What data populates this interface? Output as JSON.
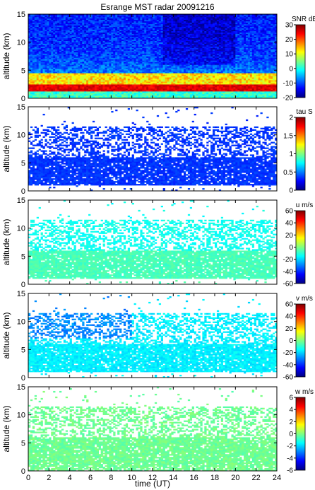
{
  "title": "Esrange MST radar 20091216",
  "xlabel": "time (UT)",
  "ylabel": "altitude (km)",
  "x_ticks": [
    "0",
    "2",
    "4",
    "6",
    "8",
    "10",
    "12",
    "14",
    "16",
    "18",
    "20",
    "22",
    "24"
  ],
  "y_ticks": [
    "0",
    "5",
    "10",
    "15"
  ],
  "colorscale": [
    "#000080",
    "#0000ff",
    "#0080ff",
    "#00ffff",
    "#80ff80",
    "#ffff00",
    "#ff8000",
    "#ff0000",
    "#800000"
  ],
  "chart_data": [
    {
      "type": "heatmap",
      "quantity": "SNR",
      "colorbar_label": "SNR dB",
      "colorbar_ticks": [
        "30",
        "20",
        "10",
        "0",
        "-10",
        "-20"
      ],
      "clim": [
        -20,
        30
      ],
      "xlim": [
        0,
        24
      ],
      "ylim": [
        0,
        15
      ],
      "xlabel": "",
      "ylabel": "altitude (km)"
    },
    {
      "type": "heatmap",
      "quantity": "tau",
      "colorbar_label": "tau S",
      "colorbar_ticks": [
        "2",
        "1.5",
        "1",
        "0.5",
        "0"
      ],
      "clim": [
        0,
        2
      ],
      "xlim": [
        0,
        24
      ],
      "ylim": [
        0,
        15
      ],
      "xlabel": "",
      "ylabel": "altitude (km)"
    },
    {
      "type": "heatmap",
      "quantity": "u",
      "colorbar_label": "u m/s",
      "colorbar_ticks": [
        "60",
        "40",
        "20",
        "0",
        "-20",
        "-40",
        "-60"
      ],
      "clim": [
        -60,
        60
      ],
      "xlim": [
        0,
        24
      ],
      "ylim": [
        0,
        15
      ],
      "xlabel": "",
      "ylabel": "altitude (km)"
    },
    {
      "type": "heatmap",
      "quantity": "v",
      "colorbar_label": "v m/s",
      "colorbar_ticks": [
        "60",
        "40",
        "20",
        "0",
        "-20",
        "-40",
        "-60"
      ],
      "clim": [
        -60,
        60
      ],
      "xlim": [
        0,
        24
      ],
      "ylim": [
        0,
        15
      ],
      "xlabel": "",
      "ylabel": "altitude (km)"
    },
    {
      "type": "heatmap",
      "quantity": "w",
      "colorbar_label": "w m/s",
      "colorbar_ticks": [
        "6",
        "4",
        "2",
        "0",
        "-2",
        "-4",
        "-6"
      ],
      "clim": [
        -6,
        6
      ],
      "xlim": [
        0,
        24
      ],
      "ylim": [
        0,
        15
      ],
      "xlabel": "time (UT)",
      "ylabel": "altitude (km)"
    }
  ]
}
